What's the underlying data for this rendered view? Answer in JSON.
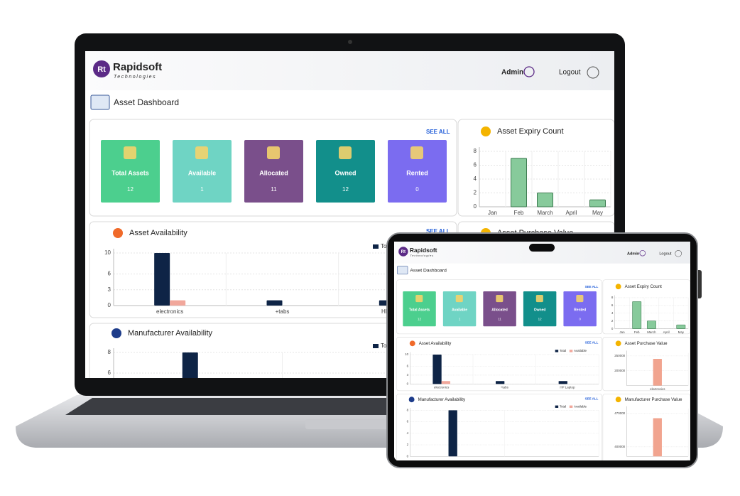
{
  "header": {
    "logo": "Rt",
    "brand": "Rapidsoft",
    "tagline": "Technologies",
    "user": "Admin",
    "logout": "Logout"
  },
  "page_title": "Asset Dashboard",
  "see_all": "SEE ALL",
  "stats": [
    {
      "label": "Total Assets",
      "value": 12,
      "color": "#4ccf8e"
    },
    {
      "label": "Available",
      "value": 1,
      "color": "#6fd4c4"
    },
    {
      "label": "Allocated",
      "value": 11,
      "color": "#7a4f8b"
    },
    {
      "label": "Owned",
      "value": 12,
      "color": "#128f8b"
    },
    {
      "label": "Rented",
      "value": 0,
      "color": "#7b6cf0"
    }
  ],
  "chart_data": [
    {
      "type": "bar",
      "title": "Asset Expiry Count",
      "categories": [
        "Jan",
        "Feb",
        "March",
        "April",
        "May"
      ],
      "series": [
        {
          "values": [
            0,
            7,
            2,
            0,
            1
          ],
          "color": "#87ca9b"
        }
      ],
      "ylim": [
        0,
        8
      ],
      "yticks": [
        0,
        2,
        4,
        6,
        8
      ],
      "grid": true
    },
    {
      "type": "bar",
      "title": "Asset Availability",
      "categories": [
        "electronics",
        "+tabs",
        "HP Laptop"
      ],
      "series": [
        {
          "name": "Total",
          "values": [
            10,
            1,
            1
          ],
          "color": "#0e2446"
        },
        {
          "name": "Available",
          "values": [
            1,
            0,
            0
          ],
          "color": "#f1a79b"
        }
      ],
      "ylim": [
        0,
        10
      ],
      "yticks": [
        0,
        3,
        6,
        10
      ],
      "grid": true
    },
    {
      "type": "bar",
      "title": "Asset Purchase Value",
      "categories": [
        "electronics"
      ],
      "series": [
        {
          "values": [
            240000
          ],
          "color": "#f1a48f"
        }
      ],
      "ylim": [
        150000,
        260000
      ],
      "yticks": [
        200000,
        250000
      ],
      "grid": true
    },
    {
      "type": "bar",
      "title": "Manufacturer Availability",
      "categories": [
        null,
        null
      ],
      "series": [
        {
          "name": "Total",
          "values": [
            8,
            0
          ],
          "color": "#0e2446"
        },
        {
          "name": "Available",
          "values": [
            0,
            0
          ],
          "color": "#f1a79b"
        }
      ],
      "ylim": [
        0,
        8
      ],
      "yticks": [
        0,
        2,
        4,
        6,
        8
      ],
      "grid": true
    },
    {
      "type": "bar",
      "title": "Manufacturer Purchase Value",
      "categories": [
        null
      ],
      "series": [
        {
          "values": [
            460000
          ],
          "color": "#f1a48f"
        }
      ],
      "ylim": [
        380000,
        480000
      ],
      "yticks": [
        400000,
        470000
      ],
      "grid": true
    }
  ]
}
